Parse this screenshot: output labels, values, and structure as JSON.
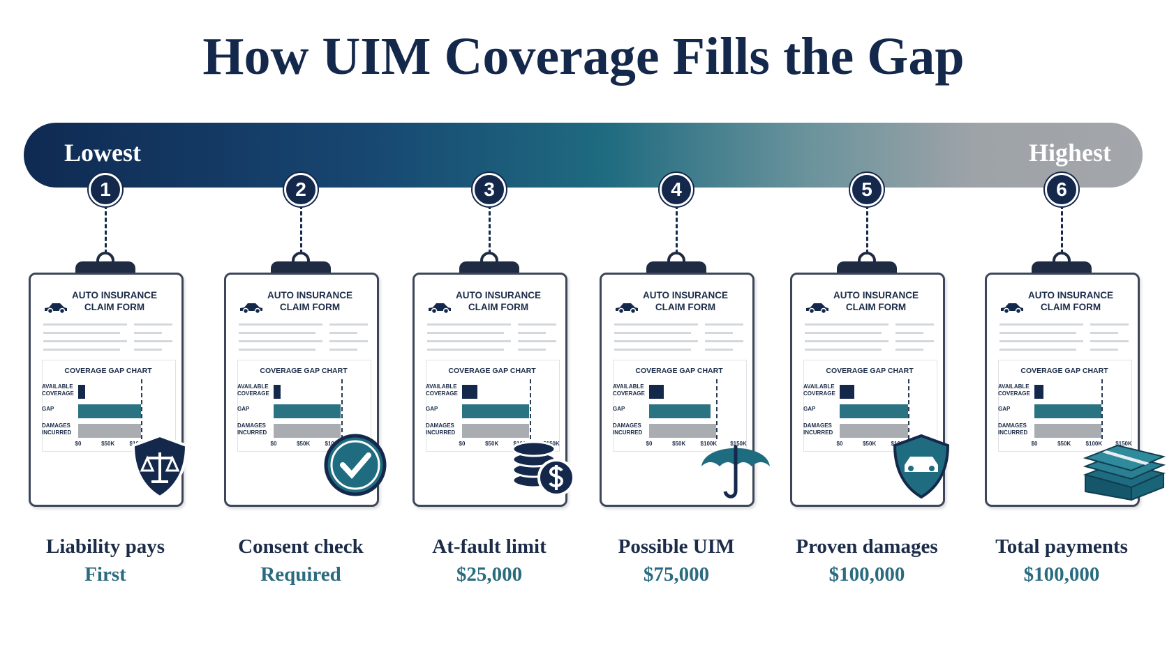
{
  "title": "How UIM Coverage Fills the Gap",
  "scale": {
    "low": "Lowest",
    "high": "Highest"
  },
  "form": {
    "header": [
      "AUTO INSURANCE",
      "CLAIM FORM"
    ],
    "chart_title": "COVERAGE GAP CHART",
    "row_labels": [
      "AVAILABLE COVERAGE",
      "GAP",
      "DAMAGES INCURRED"
    ],
    "colors": [
      "#14284b",
      "#2a7383",
      "#a9adb2"
    ],
    "xlim": [
      0,
      150000
    ],
    "xticks": [
      {
        "value": 0,
        "label": "$0"
      },
      {
        "value": 50000,
        "label": "$50K"
      },
      {
        "value": 100000,
        "label": "$100K"
      },
      {
        "value": 150000,
        "label": "$150K"
      }
    ]
  },
  "steps": [
    {
      "number": 1,
      "label": "Liability pays",
      "value": "First",
      "bars": [
        12000,
        105000,
        105000
      ],
      "limit": 105000
    },
    {
      "number": 2,
      "label": "Consent check",
      "value": "Required",
      "bars": [
        12000,
        112000,
        112000
      ],
      "limit": 114000
    },
    {
      "number": 3,
      "label": "At-fault limit",
      "value": "$25,000",
      "bars": [
        26000,
        113000,
        113000
      ],
      "limit": 114000
    },
    {
      "number": 4,
      "label": "Possible UIM",
      "value": "$75,000",
      "bars": [
        25000,
        103000,
        113000
      ],
      "limit": 113000
    },
    {
      "number": 5,
      "label": "Proven damages",
      "value": "$100,000",
      "bars": [
        25000,
        115000,
        115000
      ],
      "limit": 115000
    },
    {
      "number": 6,
      "label": "Total payments",
      "value": "$100,000",
      "bars": [
        15000,
        113000,
        113000
      ],
      "limit": 113000
    }
  ]
}
